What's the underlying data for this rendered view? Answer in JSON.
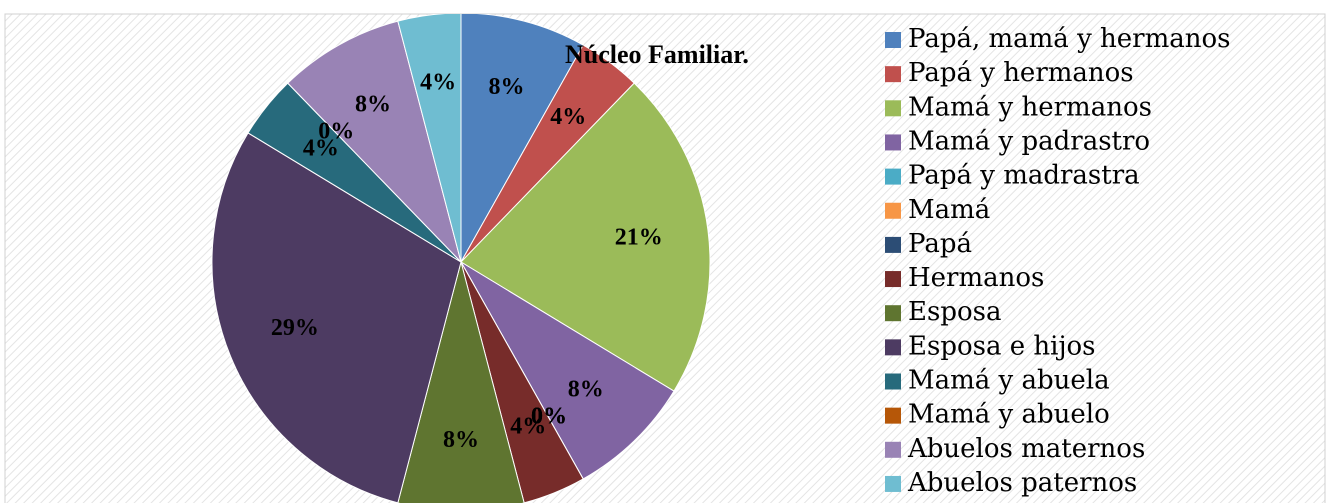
{
  "chart_data": {
    "type": "pie",
    "title": "Núcleo Familiar.",
    "categories": [
      "Papá, mamá y hermanos",
      "Papá y hermanos",
      "Mamá y hermanos",
      "Mamá y padrastro",
      "Papá y madrastra",
      "Mamá",
      "Papá",
      "Hermanos",
      "Esposa",
      "Esposa e hijos",
      "Mamá y abuela",
      "Mamá y abuelo",
      "Abuelos maternos",
      "Abuelos paternos"
    ],
    "values": [
      8,
      4,
      21,
      8,
      0,
      0,
      0,
      4,
      8,
      29,
      4,
      0,
      8,
      4
    ],
    "value_labels": [
      "8%",
      "4%",
      "21%",
      "8%",
      "0%",
      "0%",
      "0%",
      "4%",
      "8%",
      "29%",
      "4%",
      "0%",
      "8%",
      "4%"
    ],
    "colors": [
      "#4f81bd",
      "#c0504d",
      "#9bbb59",
      "#8064a2",
      "#4bacc6",
      "#f79646",
      "#2c4d75",
      "#772c2a",
      "#5f7530",
      "#4d3b62",
      "#276a7c",
      "#b65708",
      "#9983b5",
      "#6fbdd1"
    ],
    "legend": "right"
  }
}
